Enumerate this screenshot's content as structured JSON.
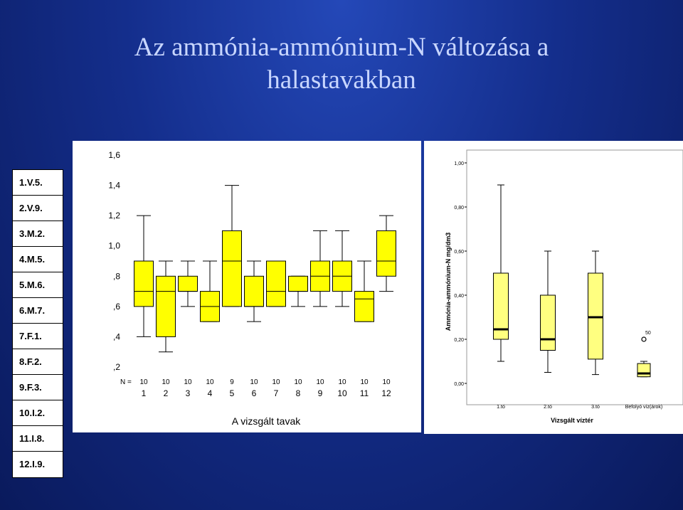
{
  "title_line1": "Az ammónia-ammónium-N változása a",
  "title_line2": "halastavakban",
  "legend_items": [
    "1.V.5.",
    "2.V.9.",
    "3.M.2.",
    "4.M.5.",
    "5.M.6.",
    "6.M.7.",
    "7.F.1.",
    "8.F.2.",
    "9.F.3.",
    "10.I.2.",
    "11.I.8.",
    "12.I.9."
  ],
  "chart_data": [
    {
      "type": "boxplot",
      "xlabel": "A vizsgált tavak",
      "ylabel": "",
      "ylim": [
        0.2,
        1.6
      ],
      "yticks": [
        ",2",
        ",4",
        ",6",
        ",8",
        "1,0",
        "1,2",
        "1,4",
        "1,6"
      ],
      "n_label": "N =",
      "categories": [
        "1",
        "2",
        "3",
        "4",
        "5",
        "6",
        "7",
        "8",
        "9",
        "10",
        "11",
        "12"
      ],
      "n": [
        "10",
        "10",
        "10",
        "10",
        "9",
        "10",
        "10",
        "10",
        "10",
        "10",
        "10",
        "10"
      ],
      "colors": {
        "box": "#ffff00",
        "stroke": "#000000"
      },
      "boxes": [
        {
          "min": 0.4,
          "q1": 0.6,
          "median": 0.7,
          "q3": 0.9,
          "max": 1.2
        },
        {
          "min": 0.3,
          "q1": 0.4,
          "median": 0.7,
          "q3": 0.8,
          "max": 0.9
        },
        {
          "min": 0.6,
          "q1": 0.7,
          "median": 0.7,
          "q3": 0.8,
          "max": 0.9
        },
        {
          "min": 0.5,
          "q1": 0.5,
          "median": 0.6,
          "q3": 0.7,
          "max": 0.9
        },
        {
          "min": 0.6,
          "q1": 0.6,
          "median": 0.9,
          "q3": 1.1,
          "max": 1.4
        },
        {
          "min": 0.5,
          "q1": 0.6,
          "median": 0.6,
          "q3": 0.8,
          "max": 0.9
        },
        {
          "min": 0.6,
          "q1": 0.6,
          "median": 0.7,
          "q3": 0.9,
          "max": 0.9
        },
        {
          "min": 0.6,
          "q1": 0.7,
          "median": 0.7,
          "q3": 0.8,
          "max": 0.8
        },
        {
          "min": 0.6,
          "q1": 0.7,
          "median": 0.8,
          "q3": 0.9,
          "max": 1.1
        },
        {
          "min": 0.6,
          "q1": 0.7,
          "median": 0.8,
          "q3": 0.9,
          "max": 1.1
        },
        {
          "min": 0.5,
          "q1": 0.5,
          "median": 0.65,
          "q3": 0.7,
          "max": 0.9
        },
        {
          "min": 0.7,
          "q1": 0.8,
          "median": 0.9,
          "q3": 1.1,
          "max": 1.2
        }
      ]
    },
    {
      "type": "boxplot",
      "xlabel": "Vizsgált víztér",
      "ylabel": "Ammónia-ammónium-N mg/dm3",
      "ylim": [
        0.0,
        1.0
      ],
      "yticks": [
        "0,00",
        "0,20",
        "0,40",
        "0,60",
        "0,80",
        "1,00"
      ],
      "categories": [
        "1.tó",
        "2.tó",
        "3.tó",
        "Befolyó víz(árok)"
      ],
      "colors": {
        "box": "#ffff80",
        "stroke": "#000000"
      },
      "boxes": [
        {
          "min": 0.1,
          "q1": 0.2,
          "median": 0.245,
          "q3": 0.5,
          "max": 0.9
        },
        {
          "min": 0.05,
          "q1": 0.15,
          "median": 0.2,
          "q3": 0.4,
          "max": 0.6
        },
        {
          "min": 0.04,
          "q1": 0.11,
          "median": 0.3,
          "q3": 0.5,
          "max": 0.6
        },
        {
          "min": 0.03,
          "q1": 0.03,
          "median": 0.045,
          "q3": 0.09,
          "max": 0.1
        }
      ],
      "outliers": [
        {
          "category": "Befolyó víz(árok)",
          "value": 0.2,
          "label": "50"
        }
      ]
    }
  ]
}
